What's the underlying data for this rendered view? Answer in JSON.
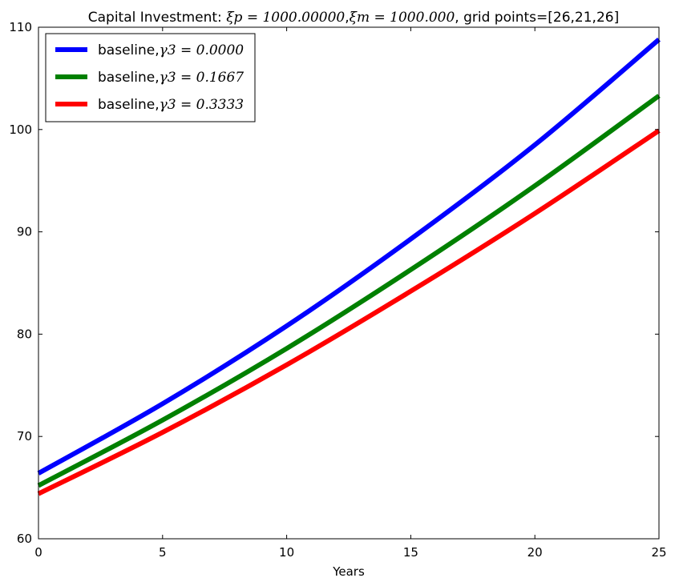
{
  "chart_data": {
    "type": "line",
    "title": {
      "prefix": "Capital Investment: ",
      "xi_p": "ξp = 1000.00000",
      "sep": ",",
      "xi_m": "ξm = 1000.000",
      "suffix": ", grid points=[26,21,26]"
    },
    "xlabel": "Years",
    "ylabel": "",
    "xlim": [
      0,
      25
    ],
    "ylim": [
      60,
      110
    ],
    "xticks": [
      0,
      5,
      10,
      15,
      20,
      25
    ],
    "yticks": [
      60,
      70,
      80,
      90,
      100,
      110
    ],
    "grid": false,
    "legend_position": "top-left",
    "x": [
      0,
      5,
      10,
      15,
      20,
      25
    ],
    "series": [
      {
        "label_prefix": "baseline,",
        "label_math": "γ3 = 0.0000",
        "color": "#0000ff",
        "values": [
          66.4,
          73.2,
          80.8,
          89.3,
          98.5,
          108.8
        ]
      },
      {
        "label_prefix": "baseline,",
        "label_math": "γ3 = 0.1667",
        "color": "#008000",
        "values": [
          65.2,
          71.6,
          78.6,
          86.3,
          94.5,
          103.3
        ]
      },
      {
        "label_prefix": "baseline,",
        "label_math": "γ3 = 0.3333",
        "color": "#ff0000",
        "values": [
          64.4,
          70.4,
          77.0,
          84.2,
          91.8,
          99.9
        ]
      }
    ]
  }
}
